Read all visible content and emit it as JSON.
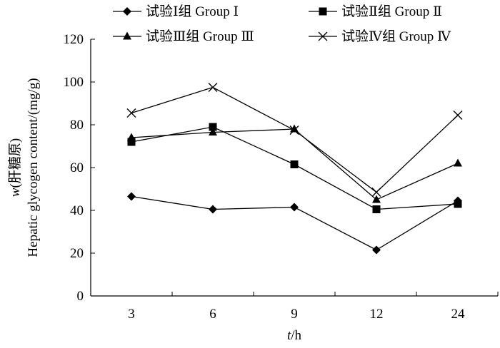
{
  "chart_data": {
    "type": "line",
    "title": "",
    "categories": [
      "3",
      "6",
      "9",
      "12",
      "24"
    ],
    "xlabel": {
      "var": "t",
      "unit": "/h"
    },
    "ylabel": {
      "var": "w",
      "cn": "(肝糖原)",
      "en": "Hepatic glycogen content/(mg/g)"
    },
    "ylim": [
      0,
      120
    ],
    "yticks": [
      0,
      20,
      40,
      60,
      80,
      100,
      120
    ],
    "grid": false,
    "legend_position": "top",
    "series": [
      {
        "name": "试验Ⅰ组  Group Ⅰ",
        "marker": "diamond",
        "values": [
          46.5,
          40.5,
          41.5,
          21.5,
          44.5
        ]
      },
      {
        "name": "试验Ⅱ组  Group Ⅱ",
        "marker": "square",
        "values": [
          72,
          79,
          61.5,
          40.5,
          43
        ]
      },
      {
        "name": "试验Ⅲ组  Group Ⅲ",
        "marker": "triangle",
        "values": [
          74,
          76.5,
          78,
          45,
          62
        ]
      },
      {
        "name": "试验Ⅳ组  Group Ⅳ",
        "marker": "cross",
        "values": [
          85.5,
          97.5,
          77.5,
          48.5,
          84.5
        ]
      }
    ]
  }
}
